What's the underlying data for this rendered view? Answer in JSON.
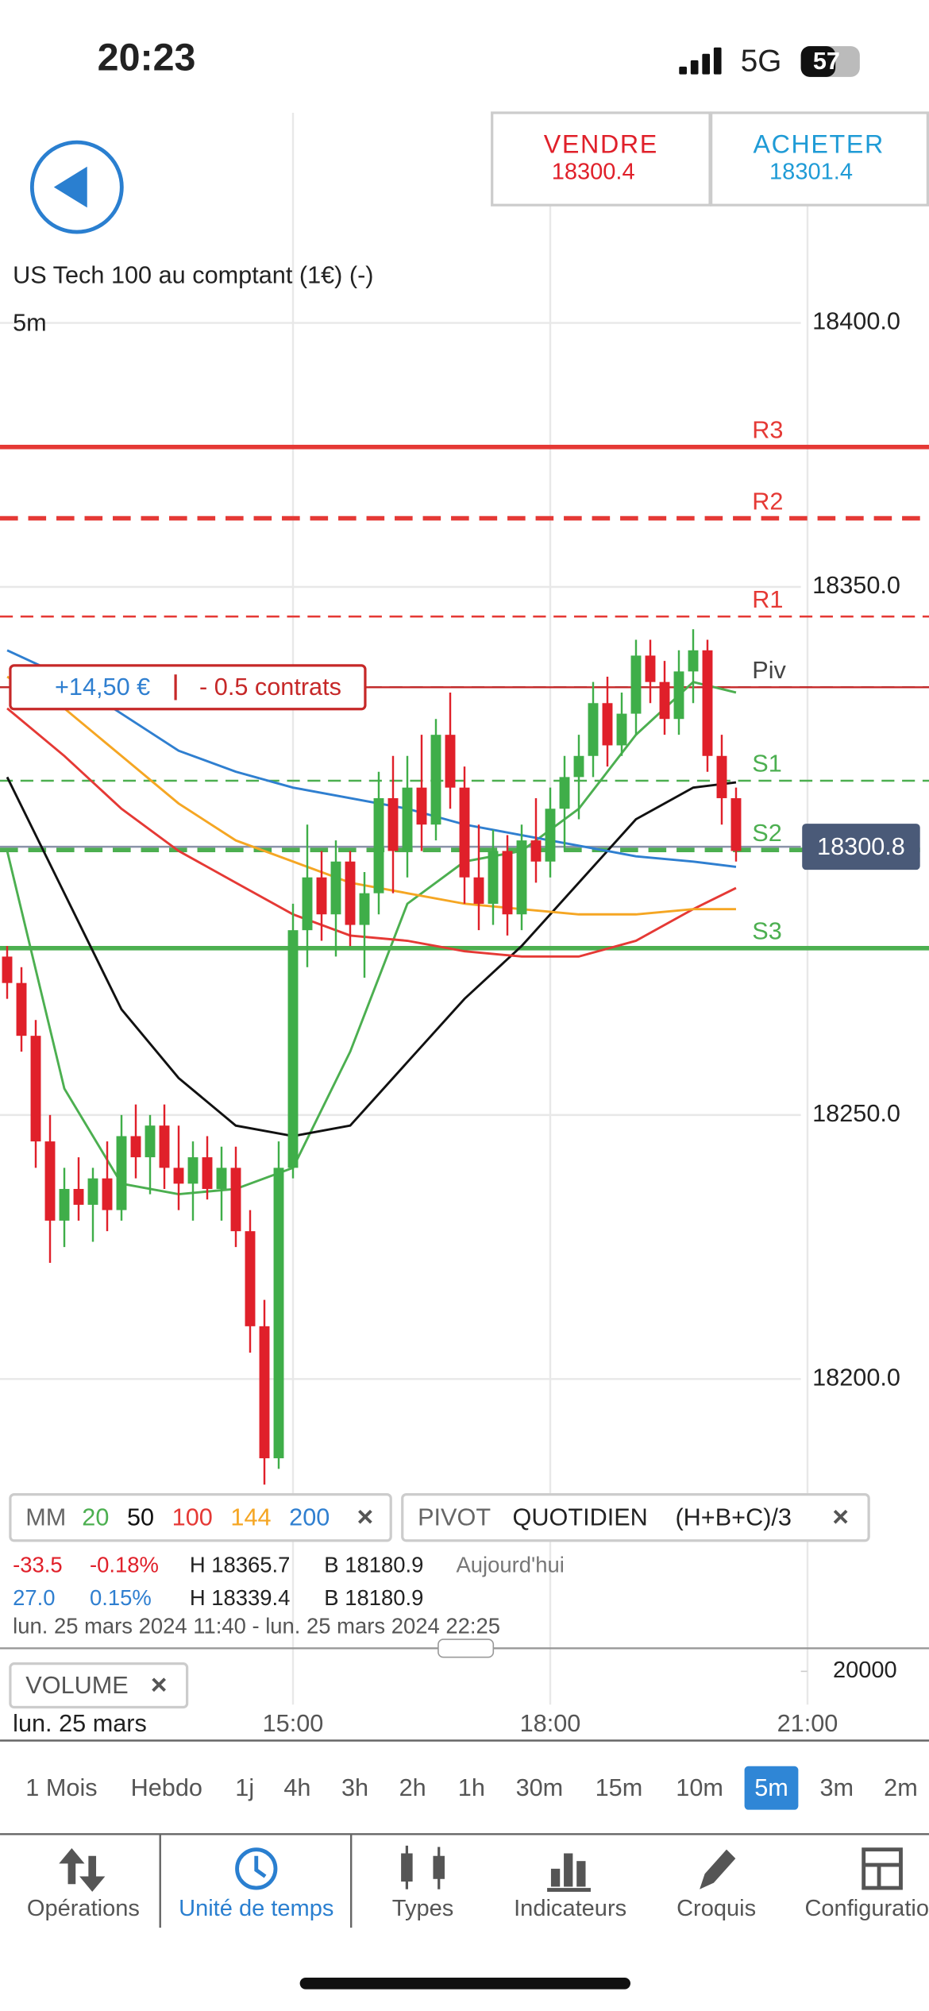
{
  "status_bar": {
    "time": "20:23",
    "network": "5G",
    "battery": "57"
  },
  "quote": {
    "sell_label": "VENDRE",
    "sell_price": "18300.4",
    "buy_label": "ACHETER",
    "buy_price": "18301.4"
  },
  "chart_data": {
    "type": "candlestick",
    "title": "US Tech 100 au comptant (1€) (-)",
    "timeframe": "5m",
    "up_color": "#3fae49",
    "down_color": "#e0202a",
    "grid": true,
    "xlim": [
      -0.5,
      64.5
    ],
    "xticks": [
      {
        "value": 20,
        "label": "15:00"
      },
      {
        "value": 38,
        "label": "18:00"
      },
      {
        "value": 56,
        "label": "21:00"
      }
    ],
    "date_label": "lun. 25 mars",
    "ylim": [
      18179.6,
      18421.1
    ],
    "yticks": [
      {
        "value": 18200,
        "label": "18200.0"
      },
      {
        "value": 18250,
        "label": "18250.0"
      },
      {
        "value": 18350,
        "label": "18350.0"
      },
      {
        "value": 18400,
        "label": "18400.0"
      }
    ],
    "x": [
      0,
      1,
      2,
      3,
      4,
      5,
      6,
      7,
      8,
      9,
      10,
      11,
      12,
      13,
      14,
      15,
      16,
      17,
      18,
      19,
      20,
      21,
      22,
      23,
      24,
      25,
      26,
      27,
      28,
      29,
      30,
      31,
      32,
      33,
      34,
      35,
      36,
      37,
      38,
      39,
      40,
      41,
      42,
      43,
      44,
      45,
      46,
      47,
      48,
      49,
      50,
      51
    ],
    "open": [
      18280,
      18275,
      18265,
      18245,
      18230,
      18236,
      18233,
      18238,
      18232,
      18246,
      18242,
      18248,
      18240,
      18237,
      18242,
      18236,
      18240,
      18228,
      18210,
      18185,
      18240,
      18285,
      18295,
      18288,
      18298,
      18286,
      18292,
      18310,
      18300,
      18312,
      18305,
      18322,
      18312,
      18295,
      18290,
      18300,
      18288,
      18302,
      18298,
      18308,
      18314,
      18318,
      18328,
      18320,
      18326,
      18337,
      18332,
      18325,
      18334,
      18338,
      18318,
      18310
    ],
    "high": [
      18282,
      18278,
      18268,
      18250,
      18240,
      18242,
      18240,
      18245,
      18250,
      18252,
      18250,
      18252,
      18248,
      18245,
      18246,
      18244,
      18244,
      18232,
      18215,
      18245,
      18290,
      18305,
      18300,
      18302,
      18300,
      18296,
      18315,
      18318,
      18318,
      18322,
      18325,
      18330,
      18316,
      18305,
      18304,
      18303,
      18305,
      18310,
      18312,
      18318,
      18322,
      18332,
      18333,
      18330,
      18340,
      18340,
      18336,
      18338,
      18342,
      18340,
      18322,
      18312
    ],
    "low": [
      18272,
      18262,
      18240,
      18222,
      18225,
      18230,
      18226,
      18228,
      18230,
      18238,
      18235,
      18236,
      18232,
      18230,
      18234,
      18230,
      18225,
      18205,
      18180,
      18183,
      18238,
      18278,
      18283,
      18280,
      18282,
      18276,
      18288,
      18292,
      18295,
      18300,
      18302,
      18308,
      18290,
      18285,
      18286,
      18284,
      18285,
      18294,
      18295,
      18300,
      18306,
      18314,
      18316,
      18318,
      18322,
      18328,
      18322,
      18322,
      18328,
      18315,
      18305,
      18298
    ],
    "close": [
      18275,
      18265,
      18245,
      18230,
      18236,
      18233,
      18238,
      18232,
      18246,
      18242,
      18248,
      18240,
      18237,
      18242,
      18236,
      18240,
      18228,
      18210,
      18185,
      18240,
      18285,
      18295,
      18288,
      18298,
      18286,
      18292,
      18310,
      18300,
      18312,
      18305,
      18322,
      18312,
      18295,
      18290,
      18300,
      18288,
      18302,
      18298,
      18308,
      18314,
      18318,
      18328,
      18320,
      18326,
      18337,
      18332,
      18325,
      18334,
      18338,
      18318,
      18310,
      18300
    ],
    "moving_averages": {
      "label": "MM",
      "x": [
        0,
        4,
        8,
        12,
        16,
        20,
        24,
        28,
        32,
        36,
        40,
        44,
        48,
        51
      ],
      "series": [
        {
          "name": "20",
          "color": "#4caf50",
          "values": [
            18300,
            18255,
            18237,
            18235,
            18236,
            18240,
            18262,
            18290,
            18298,
            18300,
            18308,
            18322,
            18332,
            18330
          ]
        },
        {
          "name": "50",
          "color": "#111111",
          "values": [
            18314,
            18292,
            18270,
            18257,
            18248,
            18246,
            18248,
            18260,
            18272,
            18282,
            18294,
            18306,
            18312,
            18313
          ]
        },
        {
          "name": "100",
          "color": "#e53935",
          "values": [
            18327,
            18318,
            18308,
            18300,
            18294,
            18288,
            18284,
            18283,
            18281,
            18280,
            18280,
            18283,
            18289,
            18293
          ]
        },
        {
          "name": "144",
          "color": "#f5a623",
          "values": [
            18333,
            18327,
            18318,
            18309,
            18302,
            18298,
            18294,
            18292,
            18290,
            18289,
            18288,
            18288,
            18289,
            18289
          ]
        },
        {
          "name": "200",
          "color": "#2f7fd0",
          "values": [
            18338,
            18333,
            18326,
            18319,
            18315,
            18312,
            18310,
            18308,
            18305,
            18303,
            18301,
            18299,
            18298,
            18297
          ]
        }
      ]
    },
    "pivot_indicator": {
      "label": "PIVOT",
      "period": "QUOTIDIEN",
      "formula": "(H+B+C)/3"
    },
    "pivots": [
      {
        "name": "R3",
        "value": 18376.5,
        "color": "#e53935",
        "style": "solid",
        "weight": "thick"
      },
      {
        "name": "R2",
        "value": 18363,
        "color": "#e53935",
        "style": "dashed",
        "weight": "thick"
      },
      {
        "name": "R1",
        "value": 18344.4,
        "color": "#e53935",
        "style": "dashed",
        "weight": "thin"
      },
      {
        "name": "Piv",
        "value": 18331,
        "color": "#444444",
        "style": "dashed",
        "weight": "thin"
      },
      {
        "name": "S1",
        "value": 18313.3,
        "color": "#4caf50",
        "style": "dashed",
        "weight": "thin"
      },
      {
        "name": "S2",
        "value": 18300.2,
        "color": "#4caf50",
        "style": "dashed",
        "weight": "thick"
      },
      {
        "name": "S3",
        "value": 18281.6,
        "color": "#4caf50",
        "style": "solid",
        "weight": "thick"
      }
    ],
    "last_price": 18300.8,
    "position": {
      "value": 18331,
      "pnl": "+14,50 €",
      "size": "- 0.5 contrats"
    },
    "volume": {
      "label": "VOLUME",
      "yticks": [
        20000
      ]
    }
  },
  "close_icon": "×",
  "stats": [
    [
      "-33.5",
      "-0.18%",
      "H 18365.7",
      "B 18180.9",
      "Aujourd'hui"
    ],
    [
      "27.0",
      "0.15%",
      "H 18339.4",
      "B 18180.9"
    ]
  ],
  "range": "lun. 25 mars 2024 11:40 - lun. 25 mars 2024 22:25",
  "timeframes": {
    "items": [
      "1 Mois",
      "Hebdo",
      "1j",
      "4h",
      "3h",
      "2h",
      "1h",
      "30m",
      "15m",
      "10m",
      "5m",
      "3m",
      "2m"
    ],
    "selected_index": 10
  },
  "tabs": {
    "items": [
      "Opérations",
      "Unité de temps",
      "Types",
      "Indicateurs",
      "Croquis",
      "Configuration"
    ],
    "selected_index": 1
  }
}
